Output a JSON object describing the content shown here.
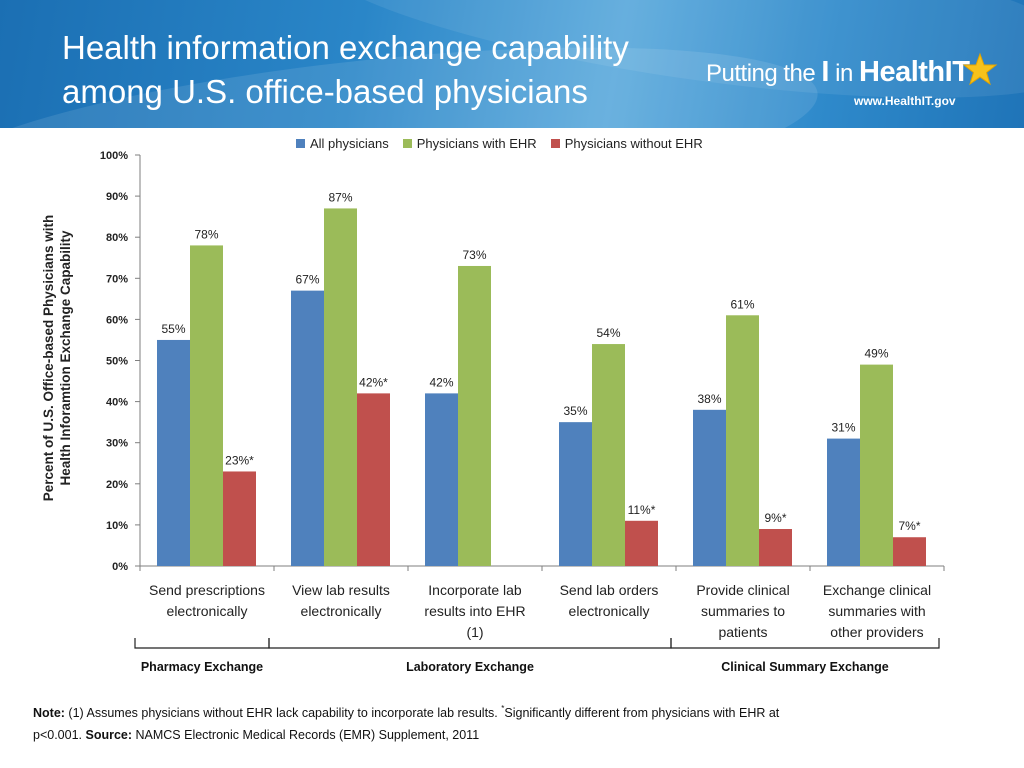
{
  "title": {
    "line1": "Health information exchange capability",
    "line2": "among U.S. office-based physicians"
  },
  "logo": {
    "text_prefix": "Putting the",
    "text_i": "I",
    "text_in": "in",
    "text_brand": "HealthIT",
    "url": "www.HealthIT.gov",
    "icon": "star-icon"
  },
  "chart_data": {
    "type": "bar",
    "title": "",
    "ylabel": "Percent of U.S. Office-based Physicians with Health Inforamtion Exchange Capability",
    "ylabel_lines": [
      "Percent of U.S. Office-based Physicians with",
      "Health Inforamtion Exchange Capability"
    ],
    "ylim": [
      0,
      100
    ],
    "yticks": [
      "0%",
      "10%",
      "20%",
      "30%",
      "40%",
      "50%",
      "60%",
      "70%",
      "80%",
      "90%",
      "100%"
    ],
    "grid": false,
    "legend_position": "top",
    "categories": [
      [
        "Send prescriptions",
        "electronically"
      ],
      [
        "View lab results",
        "electronically"
      ],
      [
        "Incorporate lab",
        "results into EHR",
        "(1)"
      ],
      [
        "Send lab orders",
        "electronically"
      ],
      [
        "Provide clinical",
        "summaries to",
        "patients"
      ],
      [
        "Exchange clinical",
        "summaries with",
        "other providers"
      ]
    ],
    "series": [
      {
        "name": "All physicians",
        "color": "#4f81bd",
        "values": [
          55,
          67,
          42,
          35,
          38,
          31
        ],
        "labels": [
          "55%",
          "67%",
          "42%",
          "35%",
          "38%",
          "31%"
        ]
      },
      {
        "name": "Physicians with EHR",
        "color": "#9bbb59",
        "values": [
          78,
          87,
          73,
          54,
          61,
          49
        ],
        "labels": [
          "78%",
          "87%",
          "73%",
          "54%",
          "61%",
          "49%"
        ]
      },
      {
        "name": "Physicians without EHR",
        "color": "#c0504d",
        "values": [
          23,
          42,
          null,
          11,
          9,
          7
        ],
        "labels": [
          "23%*",
          "42%*",
          "",
          "11%*",
          "9%*",
          "7%*"
        ]
      }
    ],
    "groups": [
      {
        "label": "Pharmacy Exchange",
        "start": 0,
        "end": 0
      },
      {
        "label": "Laboratory Exchange",
        "start": 1,
        "end": 3
      },
      {
        "label": "Clinical Summary Exchange",
        "start": 4,
        "end": 5
      }
    ]
  },
  "note": {
    "note_label": "Note:",
    "note_text": " (1) Assumes physicians without EHR lack capability to incorporate lab results. ",
    "sig_marker": "*",
    "sig_text": "Significantly different from physicians with EHR at p<0.001.  ",
    "source_label": "Source:",
    "source_text": " NAMCS Electronic Medical Records (EMR) Supplement, 2011"
  }
}
